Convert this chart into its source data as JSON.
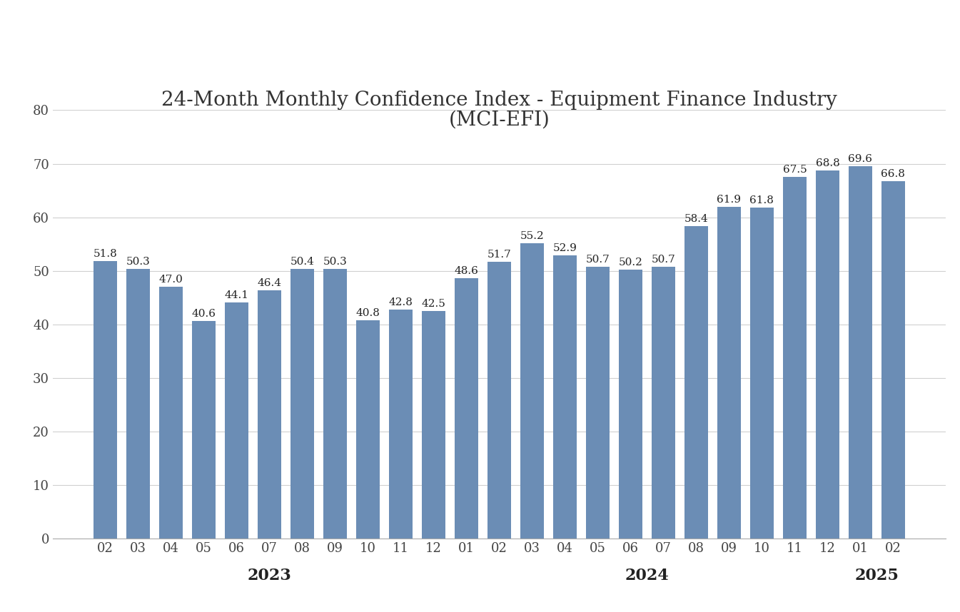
{
  "title_line1": "24-Month Monthly Confidence Index - Equipment Finance Industry",
  "title_line2": "(MCI-EFI)",
  "categories": [
    "02",
    "03",
    "04",
    "05",
    "06",
    "07",
    "08",
    "09",
    "10",
    "11",
    "12",
    "01",
    "02",
    "03",
    "04",
    "05",
    "06",
    "07",
    "08",
    "09",
    "10",
    "11",
    "12",
    "01",
    "02"
  ],
  "values": [
    51.8,
    50.3,
    47.0,
    40.6,
    44.1,
    46.4,
    50.4,
    50.3,
    40.8,
    42.8,
    42.5,
    48.6,
    51.7,
    55.2,
    52.9,
    50.7,
    50.2,
    50.7,
    58.4,
    61.9,
    61.8,
    67.5,
    68.8,
    69.6,
    66.8
  ],
  "bar_color": "#6b8db5",
  "ylim": [
    0,
    80
  ],
  "yticks": [
    0,
    10,
    20,
    30,
    40,
    50,
    60,
    70,
    80
  ],
  "title_fontsize": 20,
  "tick_fontsize": 13,
  "year_fontsize": 16,
  "value_fontsize": 11,
  "background_color": "#ffffff",
  "grid_color": "#d0d0d0",
  "year_groups": [
    {
      "label": "2023",
      "start": 0,
      "end": 10
    },
    {
      "label": "2024",
      "start": 11,
      "end": 22
    },
    {
      "label": "2025",
      "start": 23,
      "end": 24
    }
  ]
}
